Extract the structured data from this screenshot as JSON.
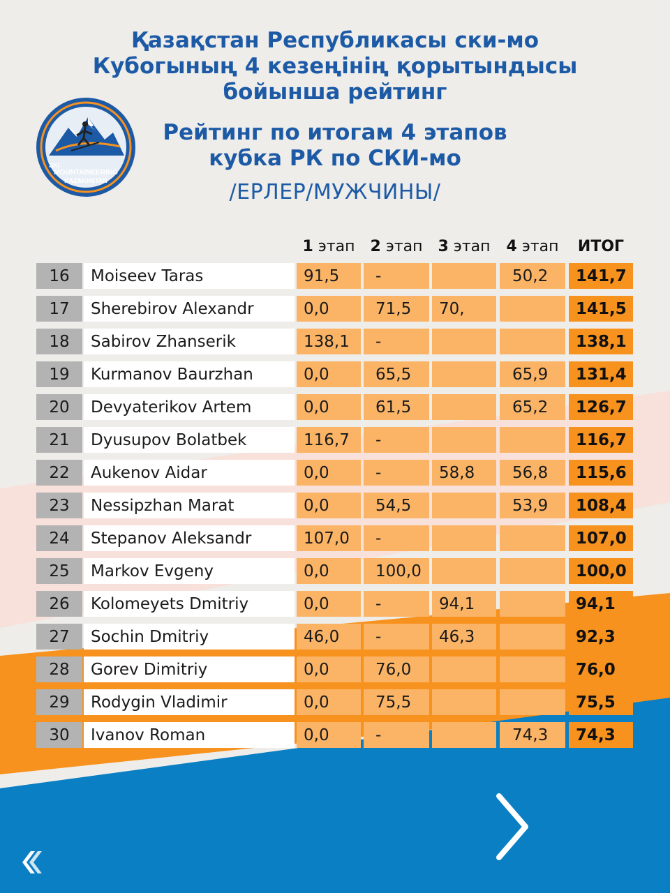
{
  "title_kz": [
    "Қазақстан Республикасы ски-мо",
    "Кубогының 4 кезеңінің қорытындысы",
    "бойынша рейтинг"
  ],
  "title_ru": [
    "Рейтинг по итогам 4 этапов",
    "кубка РК по СКИ-мо"
  ],
  "subtitle": "/ЕРЛЕР/МУЖЧИНЫ/",
  "logo": {
    "line1": "SKI",
    "line2": "MOUNTAINEERING",
    "line3": "KAZAKHSTAN"
  },
  "header": {
    "stage1_num": "1",
    "stage1_label": " этап",
    "stage2_num": "2",
    "stage2_label": " этап",
    "stage3_num": "3",
    "stage3_label": " этап",
    "stage4_num": "4",
    "stage4_label": " этап",
    "total": "ИТОГ"
  },
  "rows": [
    {
      "rank": "16",
      "name": "Moiseev Taras",
      "s1": " 91,5",
      "s2": " -",
      "s3": "",
      "s4": "50,2",
      "total": "141,7"
    },
    {
      "rank": "17",
      "name": "Sherebirov Alexandr",
      "s1": "0,0",
      "s2": "71,5",
      "s3": "70,",
      "s4": "",
      "total": "141,5"
    },
    {
      "rank": "18",
      "name": "Sabirov Zhanserik",
      "s1": "138,1",
      "s2": "-",
      "s3": "",
      "s4": "",
      "total": "138,1"
    },
    {
      "rank": "19",
      "name": "Kurmanov Baurzhan",
      "s1": "0,0",
      "s2": "65,5",
      "s3": "",
      "s4": "65,9",
      "total": "131,4"
    },
    {
      "rank": "20",
      "name": "Devyaterikov Artem",
      "s1": "0,0",
      "s2": "61,5",
      "s3": "",
      "s4": "65,2",
      "total": "126,7"
    },
    {
      "rank": "21",
      "name": "Dyusupov Bolatbek",
      "s1": "116,7",
      "s2": "-",
      "s3": "",
      "s4": "",
      "total": "116,7"
    },
    {
      "rank": "22",
      "name": "Aukenov Aidar",
      "s1": "0,0",
      "s2": "-",
      "s3": "58,8",
      "s4": "56,8",
      "total": "115,6"
    },
    {
      "rank": "23",
      "name": "Nessipzhan Marat",
      "s1": "0,0",
      "s2": "54,5",
      "s3": "",
      "s4": "53,9",
      "total": "108,4"
    },
    {
      "rank": "24",
      "name": "Stepanov Aleksandr",
      "s1": "107,0",
      "s2": "-",
      "s3": "",
      "s4": "",
      "total": "107,0"
    },
    {
      "rank": "25",
      "name": "Markov Evgeny",
      "s1": "0,0",
      "s2": "100,0",
      "s3": "",
      "s4": "",
      "total": "100,0"
    },
    {
      "rank": "26",
      "name": "Kolomeyets Dmitriy",
      "s1": "0,0",
      "s2": "-",
      "s3": "94,1",
      "s4": "",
      "total": "94,1"
    },
    {
      "rank": "27",
      "name": "Sochin Dmitriy",
      "s1": "46,0",
      "s2": "-",
      "s3": "46,3",
      "s4": "",
      "total": "92,3"
    },
    {
      "rank": "28",
      "name": "Gorev Dimitriy",
      "s1": "0,0",
      "s2": "76,0",
      "s3": "",
      "s4": "",
      "total": "76,0"
    },
    {
      "rank": "29",
      "name": "Rodygin Vladimir",
      "s1": "0,0",
      "s2": "75,5",
      "s3": "",
      "s4": "",
      "total": "75,5"
    },
    {
      "rank": "30",
      "name": "Ivanov Roman",
      "s1": "0,0",
      "s2": "-",
      "s3": "",
      "s4": "74,3",
      "total": "74,3"
    }
  ],
  "icons": {
    "next": "chevron-right-icon",
    "brand": "brand-corner-icon"
  },
  "colors": {
    "title_blue": "#1d5aa6",
    "stage_cell": "#fbb466",
    "total_cell": "#f7921e",
    "rank_cell": "#b3b3b3",
    "bg_orange": "#f7921e",
    "bg_blue": "#0a7fc4"
  }
}
